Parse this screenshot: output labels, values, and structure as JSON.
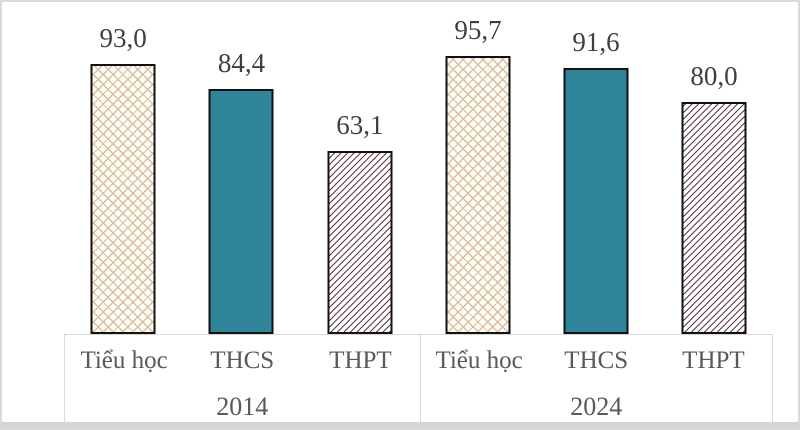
{
  "chart_data": {
    "type": "bar",
    "title": "",
    "xlabel": "",
    "ylabel": "",
    "ylim": [
      0,
      100
    ],
    "grid": false,
    "legend": "none",
    "value_label_position": "above-bar",
    "decimal_separator": ",",
    "categories": [
      "Tiểu học",
      "THCS",
      "THPT"
    ],
    "series": [
      {
        "name": "2014",
        "values": [
          93.0,
          84.4,
          63.1
        ],
        "value_labels": [
          "93,0",
          "84,4",
          "63,1"
        ]
      },
      {
        "name": "2024",
        "values": [
          95.7,
          91.6,
          80.0
        ],
        "value_labels": [
          "95,7",
          "91,6",
          "80,0"
        ]
      }
    ]
  },
  "styles": {
    "bar_fills": [
      {
        "category": "Tiểu học",
        "type": "pattern-weave",
        "line_color": "#d9bf9f",
        "bg_color": "#fffdf8"
      },
      {
        "category": "THCS",
        "type": "solid",
        "color": "#31859B"
      },
      {
        "category": "THPT",
        "type": "pattern-diagonal-hatch",
        "line_color": "#5c3a3d",
        "bg_color": "#ffffff"
      }
    ],
    "bar_border_color": "#111111",
    "value_text_color": "#3f3f3f",
    "axis_text_color": "#595959",
    "box_border_color": "#d9d9d9",
    "frame_border_color": "#d9d9d9",
    "bottom_band_color": "#d3d6da"
  }
}
